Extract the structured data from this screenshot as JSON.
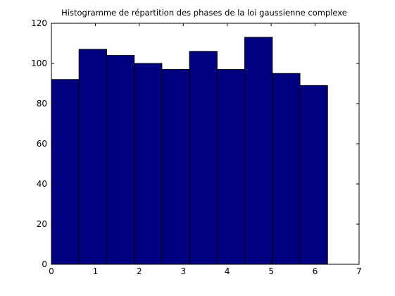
{
  "chart_data": {
    "type": "bar",
    "title": "Histogramme de répartition des phases de la loi gaussienne complexe",
    "xlabel": "",
    "ylabel": "",
    "xlim": [
      0,
      7
    ],
    "ylim": [
      0,
      120
    ],
    "xticks": [
      "0",
      "1",
      "2",
      "3",
      "4",
      "5",
      "6",
      "7"
    ],
    "yticks": [
      "0",
      "20",
      "40",
      "60",
      "80",
      "100",
      "120"
    ],
    "bin_edges": [
      0,
      0.628,
      1.257,
      1.885,
      2.513,
      3.142,
      3.77,
      4.398,
      5.027,
      5.655,
      6.283
    ],
    "values": [
      92,
      107,
      104,
      100,
      97,
      106,
      97,
      113,
      95,
      89
    ],
    "bar_color": "#000080",
    "edge_color": "#000000",
    "grid": false,
    "legend": "none"
  }
}
